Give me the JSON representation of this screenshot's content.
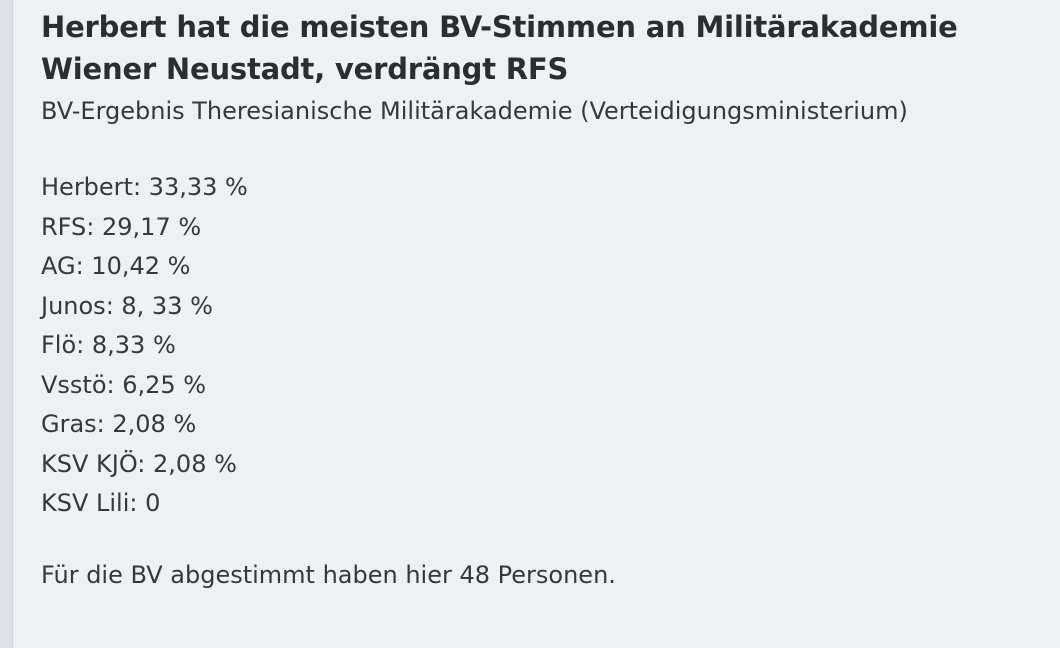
{
  "headline": "Herbert hat die meisten BV-Stimmen an Militärakademie Wiener Neustadt, verdrängt RFS",
  "subtitle": "BV-Ergebnis Theresianische Militärakademie (Verteidigungsministerium)",
  "results": [
    "Herbert: 33,33 %",
    "RFS: 29,17 %",
    "AG: 10,42 %",
    "Junos: 8, 33 %",
    "Flö: 8,33 %",
    "Vsstö: 6,25 %",
    "Gras: 2,08 %",
    "KSV KJÖ: 2,08 %",
    "KSV Lili: 0"
  ],
  "footer": "Für die BV abgestimmt haben hier 48 Personen.",
  "colors": {
    "background": "#eef0f2",
    "text": "#35393e",
    "headline": "#2a2d31"
  }
}
